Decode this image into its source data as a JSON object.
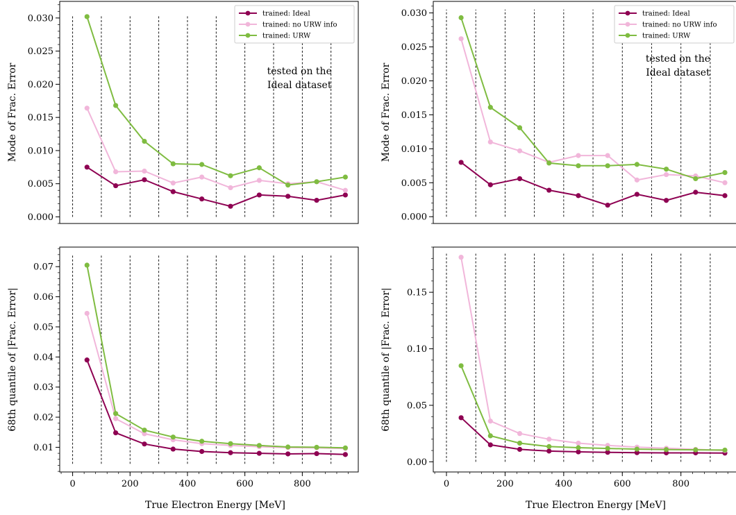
{
  "figure": {
    "xlabel": "True Electron Energy [MeV]"
  },
  "chart_data": [
    {
      "id": "tl",
      "type": "line",
      "ylabel": "Mode of Frac. Error",
      "xlim": [
        -45,
        995
      ],
      "ylim": [
        -0.001,
        0.0325
      ],
      "xticks": [
        0,
        200,
        400,
        600,
        800
      ],
      "yticks": [
        0.0,
        0.005,
        0.01,
        0.015,
        0.02,
        0.025,
        0.03
      ],
      "ytick_labels": [
        "0.000",
        "0.005",
        "0.010",
        "0.015",
        "0.020",
        "0.025",
        "0.030"
      ],
      "xticks_visible": false,
      "vlines": [
        0,
        100,
        200,
        300,
        400,
        500,
        600,
        700,
        800,
        900
      ],
      "vline_span": [
        0.0,
        0.0305
      ],
      "legend": "top-right",
      "annotation": {
        "lines": [
          "tested on the",
          "Ideal dataset"
        ],
        "x": 790,
        "y": 0.0215
      },
      "x": [
        50,
        150,
        250,
        350,
        450,
        550,
        650,
        750,
        850,
        950
      ],
      "series": [
        {
          "name": "trained: Ideal",
          "color": "#8e0152",
          "values": [
            0.0075,
            0.0047,
            0.0056,
            0.0038,
            0.0027,
            0.0016,
            0.0033,
            0.0031,
            0.0025,
            0.0033
          ]
        },
        {
          "name": "trained: no URW info",
          "color": "#f1b6da",
          "values": [
            0.0164,
            0.0068,
            0.0069,
            0.0051,
            0.006,
            0.0044,
            0.0055,
            0.005,
            0.0053,
            0.004
          ]
        },
        {
          "name": "trained: URW",
          "color": "#7fbc41",
          "values": [
            0.0302,
            0.0168,
            0.0114,
            0.008,
            0.0079,
            0.0062,
            0.0074,
            0.0048,
            0.0053,
            0.006
          ]
        }
      ]
    },
    {
      "id": "tr",
      "type": "line",
      "ylabel": "Mode of Frac. Error",
      "xlim": [
        -45,
        995
      ],
      "ylim": [
        -0.001,
        0.0317
      ],
      "xticks": [
        0,
        200,
        400,
        600,
        800
      ],
      "yticks": [
        0.0,
        0.005,
        0.01,
        0.015,
        0.02,
        0.025,
        0.03
      ],
      "ytick_labels": [
        "0.000",
        "0.005",
        "0.010",
        "0.015",
        "0.020",
        "0.025",
        "0.030"
      ],
      "xticks_visible": false,
      "vlines": [
        0,
        100,
        200,
        300,
        400,
        500,
        600,
        700,
        800,
        900
      ],
      "vline_span": [
        0.0,
        0.0305
      ],
      "legend": "top-right",
      "annotation": {
        "lines": [
          "tested on the",
          "Ideal dataset"
        ],
        "x": 790,
        "y": 0.0228
      },
      "x": [
        50,
        150,
        250,
        350,
        450,
        550,
        650,
        750,
        850,
        950
      ],
      "series": [
        {
          "name": "trained: Ideal",
          "color": "#8e0152",
          "values": [
            0.008,
            0.0047,
            0.0056,
            0.0039,
            0.0031,
            0.0017,
            0.0033,
            0.0024,
            0.0036,
            0.0031
          ]
        },
        {
          "name": "trained: no URW info",
          "color": "#f1b6da",
          "values": [
            0.0262,
            0.011,
            0.0097,
            0.008,
            0.009,
            0.009,
            0.0054,
            0.0062,
            0.006,
            0.005
          ]
        },
        {
          "name": "trained: URW",
          "color": "#7fbc41",
          "values": [
            0.0293,
            0.0161,
            0.0131,
            0.0079,
            0.0075,
            0.0075,
            0.0077,
            0.007,
            0.0056,
            0.0065
          ]
        }
      ]
    },
    {
      "id": "bl",
      "type": "line",
      "ylabel": "68th quantile of |Frac. Error|",
      "xlim": [
        -45,
        995
      ],
      "ylim": [
        0.0018,
        0.0765
      ],
      "xticks": [
        0,
        200,
        400,
        600,
        800
      ],
      "yticks": [
        0.01,
        0.02,
        0.03,
        0.04,
        0.05,
        0.06,
        0.07
      ],
      "ytick_labels": [
        "0.01",
        "0.02",
        "0.03",
        "0.04",
        "0.05",
        "0.06",
        "0.07"
      ],
      "xticks_visible": true,
      "vlines": [
        0,
        100,
        200,
        300,
        400,
        500,
        600,
        700,
        800,
        900
      ],
      "vline_span": [
        0.0045,
        0.074
      ],
      "legend": "none",
      "x": [
        50,
        150,
        250,
        350,
        450,
        550,
        650,
        750,
        850,
        950
      ],
      "series": [
        {
          "name": "trained: Ideal",
          "color": "#8e0152",
          "values": [
            0.039,
            0.0148,
            0.0111,
            0.0094,
            0.0086,
            0.0082,
            0.008,
            0.0078,
            0.0079,
            0.0076
          ]
        },
        {
          "name": "trained: no URW info",
          "color": "#f1b6da",
          "values": [
            0.0545,
            0.0195,
            0.0145,
            0.0125,
            0.0112,
            0.0106,
            0.0102,
            0.0099,
            0.0098,
            0.0096
          ]
        },
        {
          "name": "trained: URW",
          "color": "#7fbc41",
          "values": [
            0.0705,
            0.0212,
            0.0157,
            0.0134,
            0.012,
            0.0112,
            0.0106,
            0.0101,
            0.01,
            0.0098
          ]
        }
      ]
    },
    {
      "id": "br",
      "type": "line",
      "ylabel": "68th quantile of |Frac. Error|",
      "xlim": [
        -45,
        995
      ],
      "ylim": [
        -0.009,
        0.19
      ],
      "xticks": [
        0,
        200,
        400,
        600,
        800
      ],
      "yticks": [
        0.0,
        0.05,
        0.1,
        0.15
      ],
      "ytick_labels": [
        "0.00",
        "0.05",
        "0.10",
        "0.15"
      ],
      "xticks_visible": true,
      "vlines": [
        0,
        100,
        200,
        300,
        400,
        500,
        600,
        700,
        800,
        900
      ],
      "vline_span": [
        0.0,
        0.1842
      ],
      "legend": "none",
      "x": [
        50,
        150,
        250,
        350,
        450,
        550,
        650,
        750,
        850,
        950
      ],
      "series": [
        {
          "name": "trained: Ideal",
          "color": "#8e0152",
          "values": [
            0.039,
            0.015,
            0.011,
            0.0095,
            0.0088,
            0.0084,
            0.0081,
            0.0079,
            0.0079,
            0.0077
          ]
        },
        {
          "name": "trained: no URW info",
          "color": "#f1b6da",
          "values": [
            0.181,
            0.036,
            0.025,
            0.02,
            0.0165,
            0.0145,
            0.013,
            0.012,
            0.011,
            0.01
          ]
        },
        {
          "name": "trained: URW",
          "color": "#7fbc41",
          "values": [
            0.085,
            0.023,
            0.0165,
            0.0135,
            0.0125,
            0.0118,
            0.0112,
            0.0108,
            0.0106,
            0.0104
          ]
        }
      ]
    }
  ]
}
